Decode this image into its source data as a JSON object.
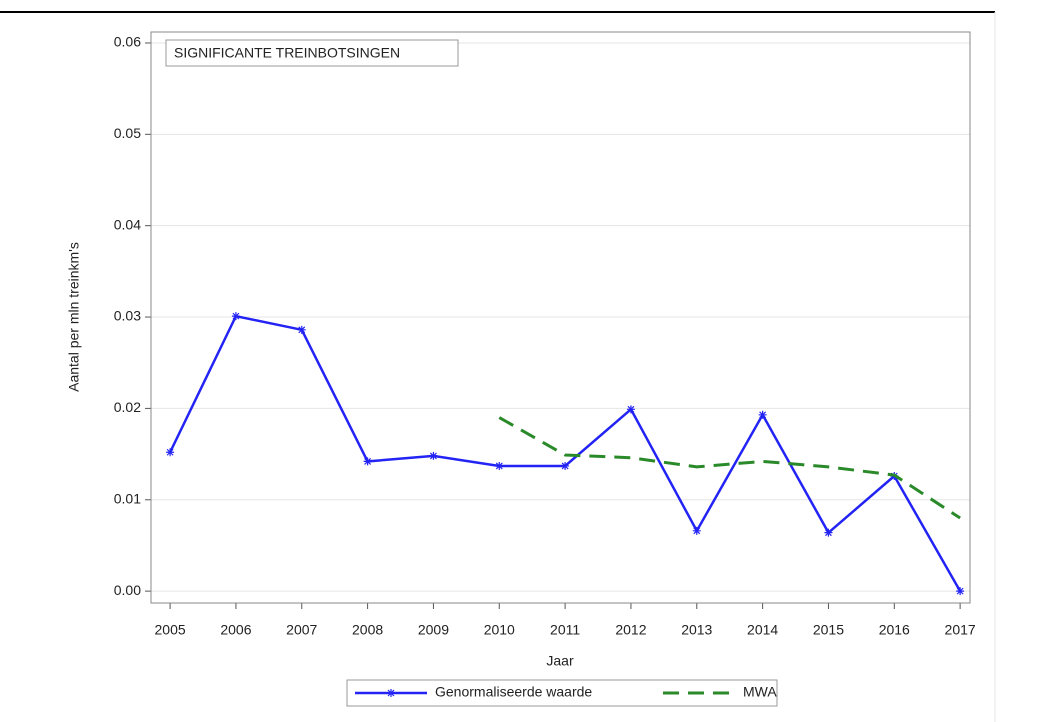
{
  "chart_data": {
    "type": "line",
    "annotation": "SIGNIFICANTE TREINBOTSINGEN",
    "x_label": "Jaar",
    "y_label": "Aantal per mln treinkm's",
    "x": [
      2005,
      2006,
      2007,
      2008,
      2009,
      2010,
      2011,
      2012,
      2013,
      2014,
      2015,
      2016,
      2017
    ],
    "series": [
      {
        "name": "Genormaliseerde waarde",
        "color": "#2323f5",
        "style": "solid",
        "marker": "star",
        "values": [
          0.0152,
          0.0301,
          0.0286,
          0.0142,
          0.0148,
          0.0137,
          0.0137,
          0.0199,
          0.0066,
          0.0193,
          0.0064,
          0.0126,
          0
        ]
      },
      {
        "name": "MWA",
        "color": "#2a8a2a",
        "style": "dashed",
        "marker": "none",
        "values": [
          null,
          null,
          null,
          null,
          null,
          0.019,
          0.0149,
          0.0146,
          0.0136,
          0.0142,
          0.0136,
          0.0127,
          0.008
        ]
      }
    ],
    "xlim": [
      2004.71,
      2017.15
    ],
    "ylim": [
      -0.0013,
      0.0612
    ],
    "xticks": [
      2005,
      2006,
      2007,
      2008,
      2009,
      2010,
      2011,
      2012,
      2013,
      2014,
      2015,
      2016,
      2017
    ],
    "yticks": [
      {
        "value": 0,
        "label": "0.00"
      },
      0.01,
      0.02,
      0.03,
      0.04,
      0.05,
      0.06
    ],
    "grid": true,
    "legend": "bottom"
  }
}
